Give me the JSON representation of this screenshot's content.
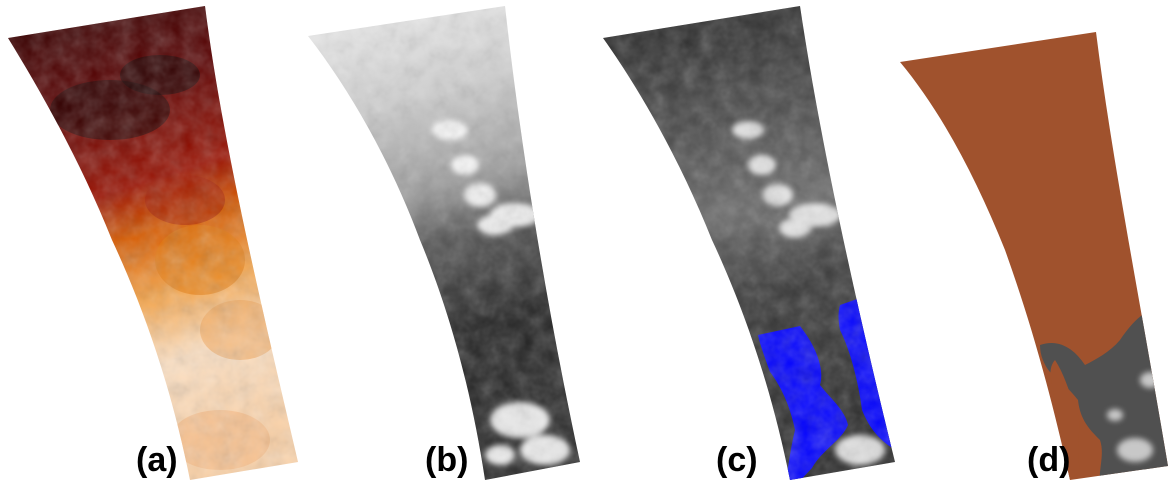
{
  "panels": [
    {
      "id": "a",
      "label": "(a)",
      "kind": "heat-map",
      "colors": {
        "top": "#2a0000",
        "mid1": "#7a0500",
        "mid2": "#c23a00",
        "mid3": "#f29a3a",
        "bottom": "#fff2e6"
      }
    },
    {
      "id": "b",
      "label": "(b)",
      "kind": "grayscale",
      "colors": {
        "top": "#f2f2f2",
        "mid1": "#b0b0b0",
        "mid2": "#4a4a4a",
        "bottom": "#1a1a1a",
        "cloud": "#ffffff"
      }
    },
    {
      "id": "c",
      "label": "(c)",
      "kind": "grayscale-with-mask",
      "colors": {
        "top": "#2a2a2a",
        "mid": "#5a5a5a",
        "bottom": "#3a3a3a",
        "cloud": "#f0f0f0",
        "mask": "#0000ff"
      }
    },
    {
      "id": "d",
      "label": "(d)",
      "kind": "mask-overlay",
      "colors": {
        "mask": "#a0522d",
        "background": "#555555",
        "cloud": "#dddddd"
      }
    }
  ]
}
